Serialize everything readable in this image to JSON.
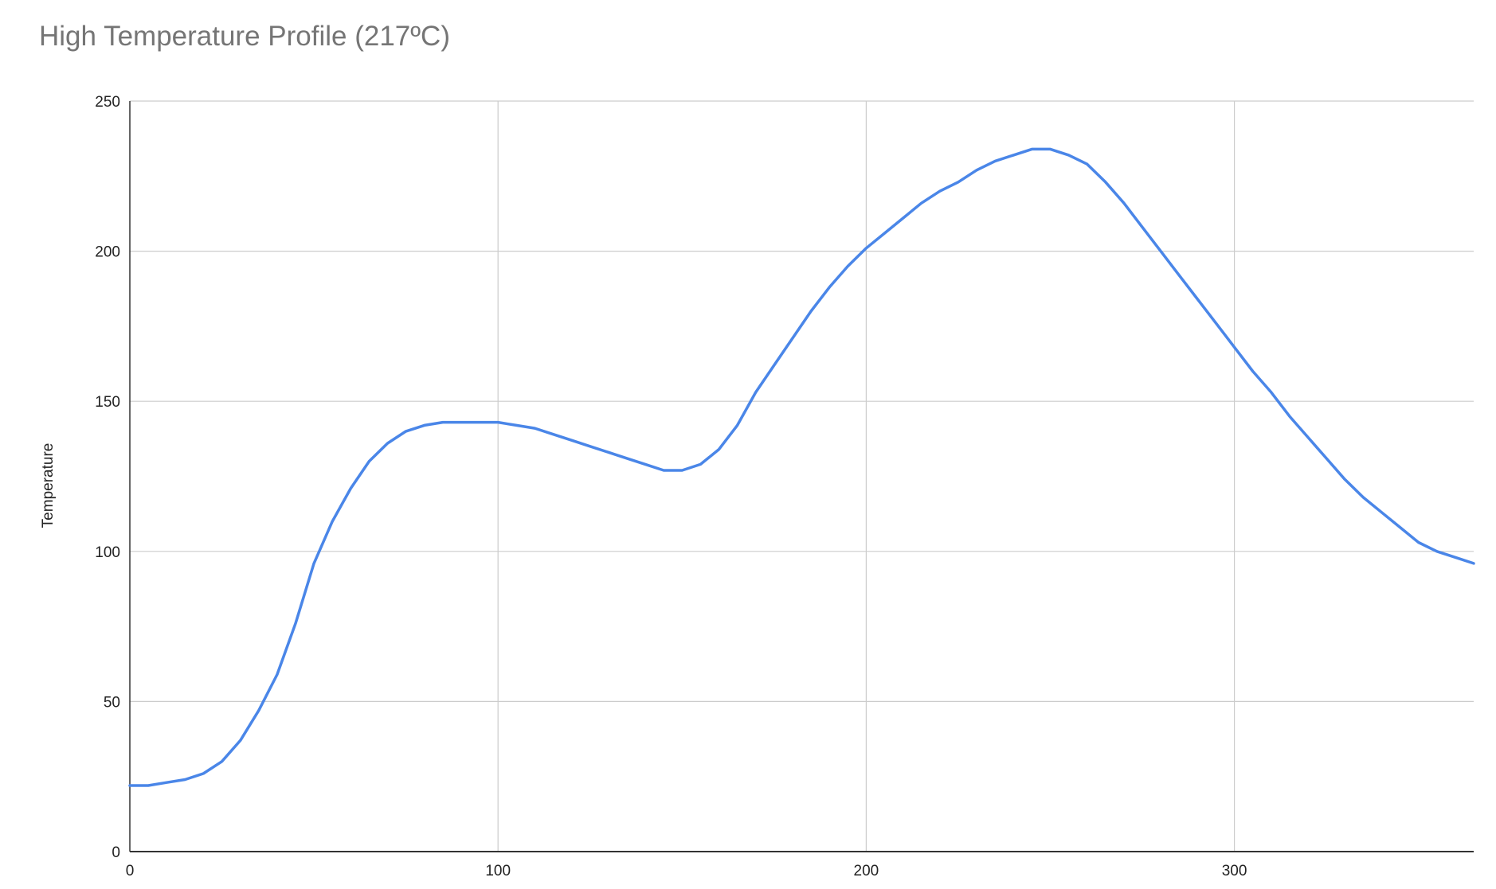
{
  "chart_data": {
    "type": "line",
    "title": "High Temperature Profile (217ºC)",
    "xlabel": "",
    "ylabel": "Temperature",
    "xlim": [
      0,
      365
    ],
    "ylim": [
      0,
      250
    ],
    "x_ticks": [
      0,
      100,
      200,
      300
    ],
    "y_ticks": [
      0,
      50,
      100,
      150,
      200,
      250
    ],
    "grid": true,
    "line_color": "#4a86e8",
    "series": [
      {
        "x": [
          0,
          5,
          10,
          15,
          20,
          25,
          30,
          35,
          40,
          45,
          50,
          55,
          60,
          65,
          70,
          75,
          80,
          85,
          90,
          95,
          100,
          105,
          110,
          115,
          120,
          125,
          130,
          135,
          140,
          145,
          150,
          155,
          160,
          165,
          170,
          175,
          180,
          185,
          190,
          195,
          200,
          205,
          210,
          215,
          220,
          225,
          230,
          235,
          240,
          245,
          250,
          255,
          260,
          265,
          270,
          275,
          280,
          285,
          290,
          295,
          300,
          305,
          310,
          315,
          320,
          325,
          330,
          335,
          340,
          345,
          350,
          355,
          360,
          365
        ],
        "values": [
          22,
          22,
          23,
          24,
          26,
          30,
          37,
          47,
          59,
          76,
          96,
          110,
          121,
          130,
          136,
          140,
          142,
          143,
          143,
          143,
          143,
          142,
          141,
          139,
          137,
          135,
          133,
          131,
          129,
          127,
          127,
          129,
          134,
          142,
          153,
          162,
          171,
          180,
          188,
          195,
          201,
          206,
          211,
          216,
          220,
          223,
          227,
          230,
          232,
          234,
          234,
          232,
          229,
          223,
          216,
          208,
          200,
          192,
          184,
          176,
          168,
          160,
          153,
          145,
          138,
          131,
          124,
          118,
          113,
          108,
          103,
          100,
          98,
          96
        ]
      }
    ]
  }
}
